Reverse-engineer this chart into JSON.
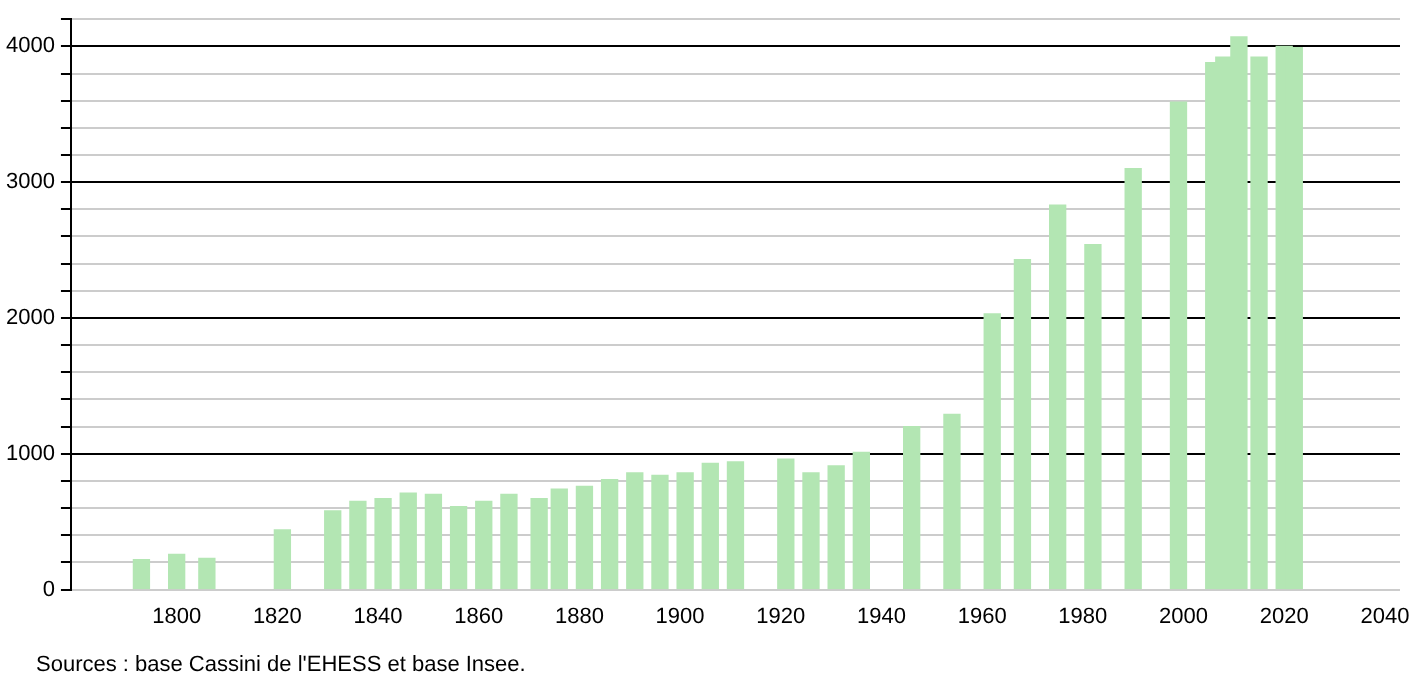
{
  "chart_data": {
    "type": "bar",
    "x": [
      1793,
      1800,
      1806,
      1821,
      1831,
      1836,
      1841,
      1846,
      1851,
      1856,
      1861,
      1866,
      1872,
      1876,
      1881,
      1886,
      1891,
      1896,
      1901,
      1906,
      1911,
      1921,
      1926,
      1931,
      1936,
      1946,
      1954,
      1962,
      1968,
      1975,
      1982,
      1990,
      1999,
      2006,
      2008,
      2011,
      2015,
      2020,
      2022
    ],
    "values": [
      220,
      260,
      230,
      440,
      580,
      650,
      670,
      710,
      700,
      610,
      650,
      700,
      670,
      740,
      760,
      810,
      860,
      840,
      860,
      930,
      940,
      960,
      860,
      910,
      1010,
      1200,
      1290,
      2030,
      2430,
      2830,
      2540,
      3100,
      3590,
      3880,
      3920,
      4070,
      3920,
      4000,
      3990
    ],
    "color": "#b3e6b3",
    "xlim": [
      1779,
      2043
    ],
    "xticks": [
      1800,
      1820,
      1840,
      1860,
      1880,
      1900,
      1920,
      1940,
      1960,
      1980,
      2000,
      2020,
      2040
    ],
    "ylim": [
      0,
      4200
    ],
    "yticks": [
      0,
      {
        "value": 200,
        "label": null
      },
      {
        "value": 400,
        "label": null
      },
      {
        "value": 600,
        "label": null
      },
      {
        "value": 800,
        "label": null
      },
      1000,
      {
        "value": 1200,
        "label": null
      },
      {
        "value": 1400,
        "label": null
      },
      {
        "value": 1600,
        "label": null
      },
      {
        "value": 1800,
        "label": null
      },
      2000,
      {
        "value": 2200,
        "label": null
      },
      {
        "value": 2400,
        "label": null
      },
      {
        "value": 2600,
        "label": null
      },
      {
        "value": 2800,
        "label": null
      },
      3000,
      {
        "value": 3200,
        "label": null
      },
      {
        "value": 3400,
        "label": null
      },
      {
        "value": 3600,
        "label": null
      },
      {
        "value": 3800,
        "label": null
      },
      4000,
      {
        "value": 4200,
        "label": null
      }
    ],
    "grid": "y",
    "legend": false,
    "annotations": [
      "Sources : base Cassini de l'EHESS et base Insee."
    ]
  }
}
